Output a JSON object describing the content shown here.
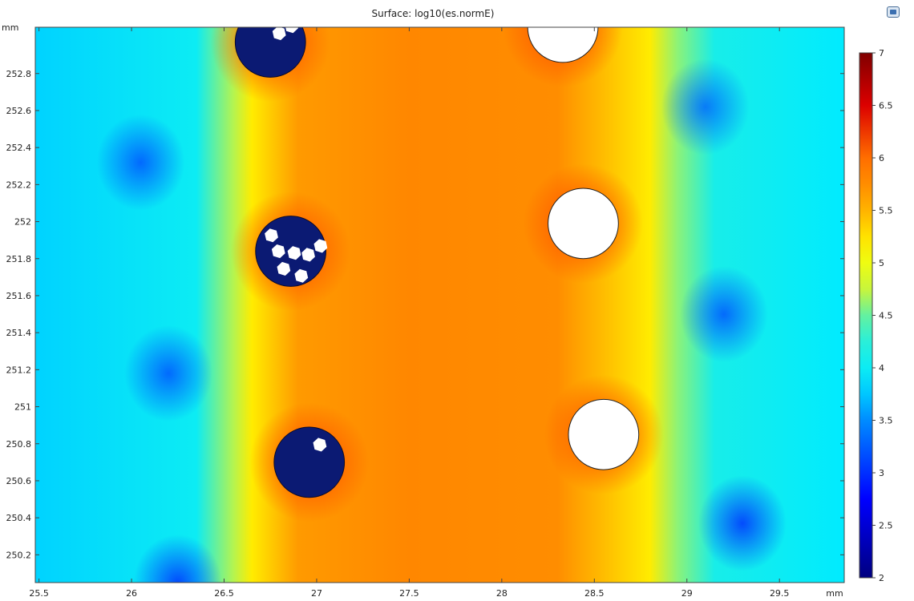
{
  "chart_data": {
    "type": "heatmap",
    "title": "Surface: log10(es.normE)",
    "xlabel": "mm",
    "ylabel": "mm",
    "xlim": [
      25.48,
      29.85
    ],
    "ylim": [
      250.05,
      253.05
    ],
    "x_ticks": [
      "25.5",
      "26",
      "26.5",
      "27",
      "27.5",
      "28",
      "28.5",
      "29",
      "29.5"
    ],
    "y_ticks": [
      "250.2",
      "250.4",
      "250.6",
      "250.8",
      "251",
      "251.2",
      "251.4",
      "251.6",
      "251.8",
      "252",
      "252.2",
      "252.4",
      "252.6",
      "252.8"
    ],
    "colorbar": {
      "min": 2,
      "max": 7,
      "ticks": [
        "2",
        "2.5",
        "3",
        "3.5",
        "4",
        "4.5",
        "5",
        "5.5",
        "6",
        "6.5",
        "7"
      ]
    },
    "field_summary": {
      "left_band": {
        "x_range": [
          25.48,
          26.6
        ],
        "value_approx": 3.8
      },
      "yellow_fronts": {
        "x_left_approx": 26.65,
        "x_right_approx": 28.8,
        "value_approx": 5.2
      },
      "center_band": {
        "x_range": [
          26.7,
          28.7
        ],
        "value_approx": 5.8
      },
      "right_band": {
        "x_range": [
          28.8,
          29.85
        ],
        "value_approx": 3.9
      },
      "low_spots": [
        {
          "x": 26.05,
          "y": 252.32,
          "value_approx": 3.2
        },
        {
          "x": 26.2,
          "y": 251.18,
          "value_approx": 3.2
        },
        {
          "x": 26.25,
          "y": 250.05,
          "value_approx": 3.0
        },
        {
          "x": 29.1,
          "y": 252.62,
          "value_approx": 3.3
        },
        {
          "x": 29.2,
          "y": 251.5,
          "value_approx": 3.2
        },
        {
          "x": 29.3,
          "y": 250.37,
          "value_approx": 3.0
        }
      ]
    },
    "inclusions": [
      {
        "kind": "filled",
        "x": 26.75,
        "y": 252.97,
        "r": 0.19
      },
      {
        "kind": "filled",
        "x": 26.86,
        "y": 251.84,
        "r": 0.19
      },
      {
        "kind": "filled",
        "x": 26.96,
        "y": 250.7,
        "r": 0.19
      },
      {
        "kind": "void",
        "x": 28.33,
        "y": 253.05,
        "r": 0.19
      },
      {
        "kind": "void",
        "x": 28.44,
        "y": 251.99,
        "r": 0.19
      },
      {
        "kind": "void",
        "x": 28.55,
        "y": 250.85,
        "r": 0.19
      }
    ]
  }
}
